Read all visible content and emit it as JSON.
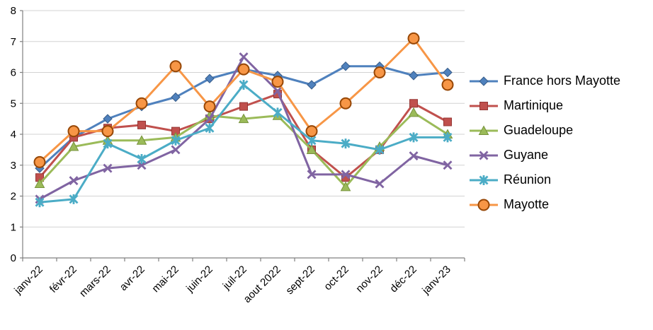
{
  "chart_data": {
    "type": "line",
    "title": "",
    "xlabel": "",
    "ylabel": "",
    "ylim": [
      0,
      8
    ],
    "y_ticks": [
      0,
      1,
      2,
      3,
      4,
      5,
      6,
      7,
      8
    ],
    "grid": true,
    "legend_position": "right",
    "colors": {
      "grid": "#D3D3D3",
      "axis": "#808080",
      "text": "#000000",
      "background": "#FFFFFF"
    },
    "categories": [
      "janv-22",
      "févr-22",
      "mars-22",
      "avr-22",
      "mai-22",
      "juin-22",
      "juil-22",
      "aout 2022",
      "sept-22",
      "oct-22",
      "nov-22",
      "déc-22",
      "janv-23"
    ],
    "series": [
      {
        "name": "France hors Mayotte",
        "color": "#4F81BD",
        "edge": "#385D8A",
        "marker": "diamond",
        "values": [
          2.9,
          3.9,
          4.5,
          4.9,
          5.2,
          5.8,
          6.1,
          5.9,
          5.6,
          6.2,
          6.2,
          5.9,
          6.0
        ]
      },
      {
        "name": "Martinique",
        "color": "#C0504D",
        "edge": "#953735",
        "marker": "square",
        "values": [
          2.6,
          3.9,
          4.2,
          4.3,
          4.1,
          4.5,
          4.9,
          5.3,
          3.5,
          2.6,
          3.5,
          5.0,
          4.4
        ]
      },
      {
        "name": "Guadeloupe",
        "color": "#9BBB59",
        "edge": "#77933C",
        "marker": "triangle",
        "values": [
          2.4,
          3.6,
          3.8,
          3.8,
          3.9,
          4.6,
          4.5,
          4.6,
          3.5,
          2.3,
          3.6,
          4.7,
          4.0
        ]
      },
      {
        "name": "Guyane",
        "color": "#8064A2",
        "edge": "#604A7B",
        "marker": "x",
        "values": [
          1.9,
          2.5,
          2.9,
          3.0,
          3.5,
          4.5,
          6.5,
          5.4,
          2.7,
          2.7,
          2.4,
          3.3,
          3.0
        ]
      },
      {
        "name": "Réunion",
        "color": "#4BACC6",
        "edge": "#31849B",
        "marker": "star",
        "values": [
          1.8,
          1.9,
          3.7,
          3.2,
          3.8,
          4.2,
          5.6,
          4.7,
          3.8,
          3.7,
          3.5,
          3.9,
          3.9
        ]
      },
      {
        "name": "Mayotte",
        "color": "#F79646",
        "edge": "#974706",
        "marker": "circle",
        "values": [
          3.1,
          4.1,
          4.1,
          5.0,
          6.2,
          4.9,
          6.1,
          5.7,
          4.1,
          5.0,
          6.0,
          7.1,
          5.6
        ]
      }
    ]
  }
}
